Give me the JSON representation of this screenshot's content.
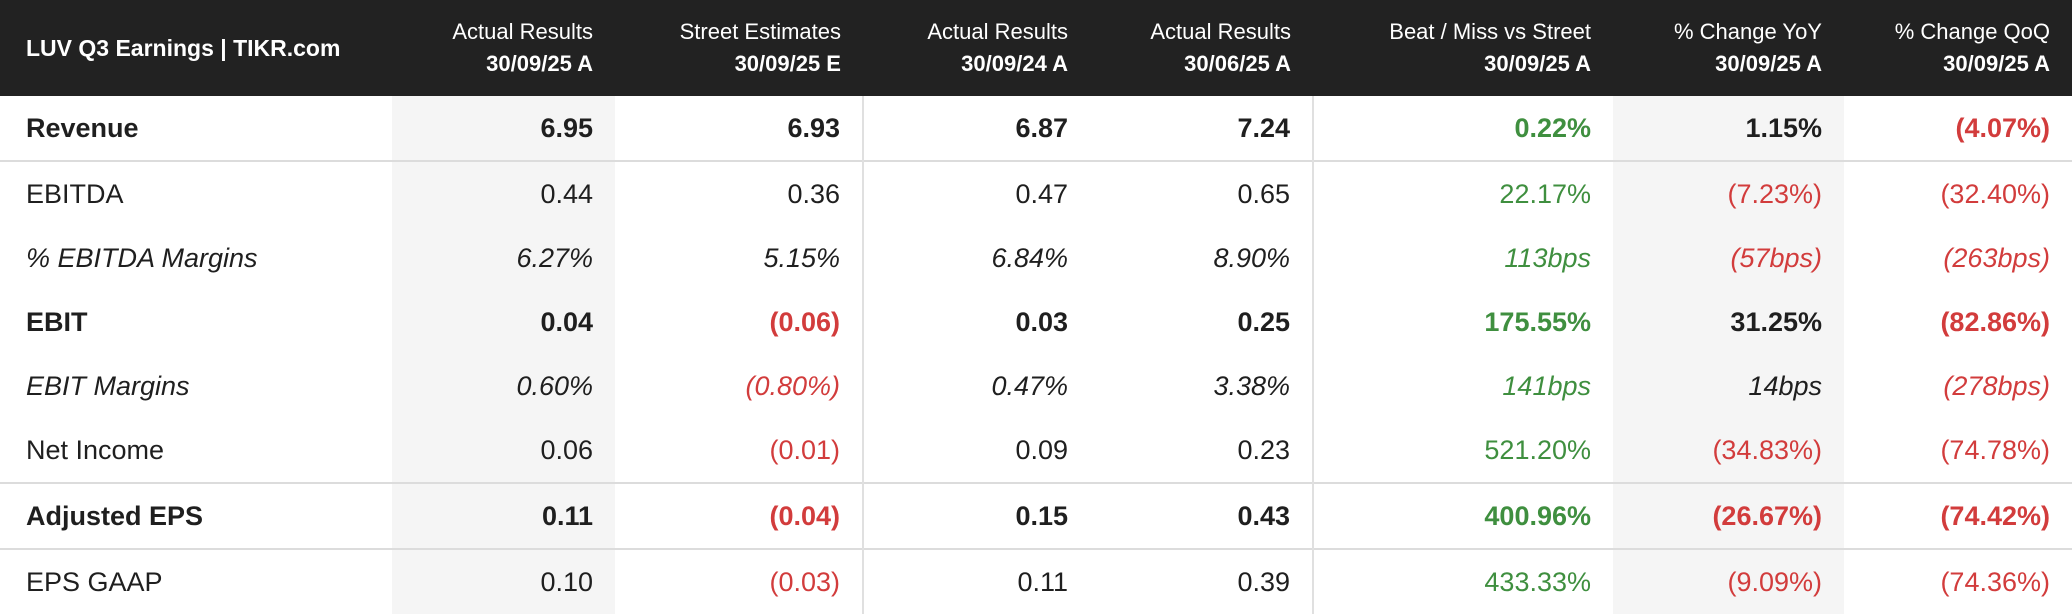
{
  "table": {
    "title": "LUV Q3 Earnings | TIKR.com",
    "columns": [
      {
        "line1": "Actual Results",
        "line2": "30/09/25 A"
      },
      {
        "line1": "Street Estimates",
        "line2": "30/09/25 E"
      },
      {
        "line1": "Actual Results",
        "line2": "30/09/24 A"
      },
      {
        "line1": "Actual Results",
        "line2": "30/06/25 A"
      },
      {
        "line1": "Beat / Miss vs Street",
        "line2": "30/09/25 A"
      },
      {
        "line1": "% Change YoY",
        "line2": "30/09/25 A"
      },
      {
        "line1": "% Change QoQ",
        "line2": "30/09/25 A"
      }
    ],
    "rows": [
      {
        "label": "Revenue",
        "cells": [
          "6.95",
          "6.93",
          "6.87",
          "7.24",
          "0.22%",
          "1.15%",
          "(4.07%)"
        ]
      },
      {
        "label": "EBITDA",
        "cells": [
          "0.44",
          "0.36",
          "0.47",
          "0.65",
          "22.17%",
          "(7.23%)",
          "(32.40%)"
        ]
      },
      {
        "label": "% EBITDA Margins",
        "cells": [
          "6.27%",
          "5.15%",
          "6.84%",
          "8.90%",
          "113bps",
          "(57bps)",
          "(263bps)"
        ]
      },
      {
        "label": "EBIT",
        "cells": [
          "0.04",
          "(0.06)",
          "0.03",
          "0.25",
          "175.55%",
          "31.25%",
          "(82.86%)"
        ]
      },
      {
        "label": "EBIT Margins",
        "cells": [
          "0.60%",
          "(0.80%)",
          "0.47%",
          "3.38%",
          "141bps",
          "14bps",
          "(278bps)"
        ]
      },
      {
        "label": "Net Income",
        "cells": [
          "0.06",
          "(0.01)",
          "0.09",
          "0.23",
          "521.20%",
          "(34.83%)",
          "(74.78%)"
        ]
      },
      {
        "label": "Adjusted EPS",
        "cells": [
          "0.11",
          "(0.04)",
          "0.15",
          "0.43",
          "400.96%",
          "(26.67%)",
          "(74.42%)"
        ]
      },
      {
        "label": "EPS GAAP",
        "cells": [
          "0.10",
          "(0.03)",
          "0.11",
          "0.39",
          "433.33%",
          "(9.09%)",
          "(74.36%)"
        ]
      }
    ]
  },
  "colors": {
    "header_bg": "#222222",
    "positive": "#3f8f3f",
    "negative": "#d23c3c",
    "shade": "#f5f5f5"
  }
}
